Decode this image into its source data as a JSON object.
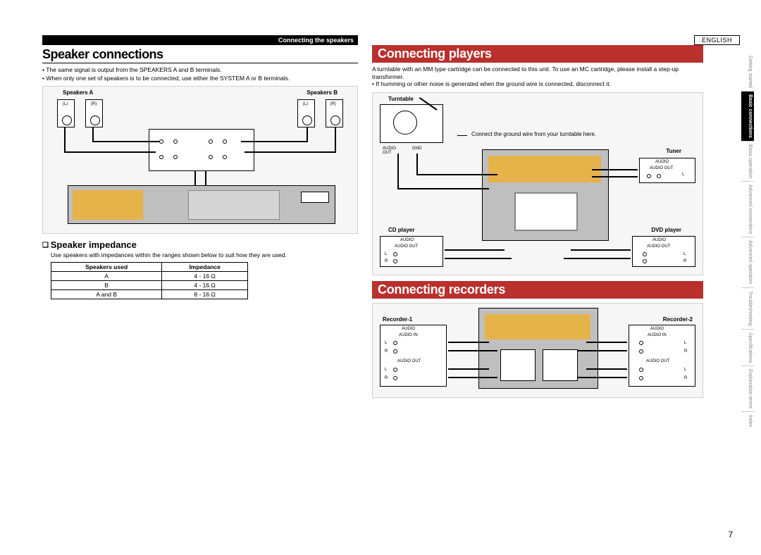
{
  "lang_label": "ENGLISH",
  "page_number": "7",
  "side_nav": [
    {
      "label": "Getting started",
      "active": false
    },
    {
      "label": "Basic connections",
      "active": true
    },
    {
      "label": "Basic operation",
      "active": false
    },
    {
      "label": "Advanced connections",
      "active": false
    },
    {
      "label": "Advanced operation",
      "active": false
    },
    {
      "label": "Troubleshooting",
      "active": false
    },
    {
      "label": "Specifications",
      "active": false
    },
    {
      "label": "Explanation terms",
      "active": false
    },
    {
      "label": "Index",
      "active": false
    }
  ],
  "left": {
    "header_bar": "Connecting the speakers",
    "title": "Speaker connections",
    "notes": [
      "The same signal is output from the SPEAKERS A and B terminals.",
      "When only one set of speakers is to be connected, use either the SYSTEM A or B terminals."
    ],
    "diagram": {
      "speakers_a": "Speakers A",
      "speakers_b": "Speakers B",
      "l": "(L)",
      "r": "(R)"
    },
    "sub_heading": "Speaker impedance",
    "sub_note": "Use speakers with impedances within the ranges shown below to suit how they are used.",
    "table": {
      "head": [
        "Speakers used",
        "Impedance"
      ],
      "rows": [
        [
          "A",
          "4 - 16 Ω"
        ],
        [
          "B",
          "4 - 16 Ω"
        ],
        [
          "A and B",
          "8 - 16 Ω"
        ]
      ]
    }
  },
  "right": {
    "section1_title": "Connecting players",
    "section1_intro1": "A turntable with an MM type cartridge can be connected to this unit. To use an MC cartridge, please install a step-up transformer.",
    "section1_intro2": "If humming or other noise is generated when the ground wire is connected, disconnect it.",
    "labels": {
      "turntable": "Turntable",
      "tuner": "Tuner",
      "cd": "CD player",
      "dvd": "DVD player",
      "audio_out": "AUDIO OUT",
      "audio_in": "AUDIO IN",
      "audio": "AUDIO",
      "gnd": "GND",
      "l": "L",
      "r": "R"
    },
    "ground_note": "Connect the ground wire from your turntable here.",
    "section2_title": "Connecting recorders",
    "rec1": "Recorder-1",
    "rec2": "Recorder-2"
  }
}
